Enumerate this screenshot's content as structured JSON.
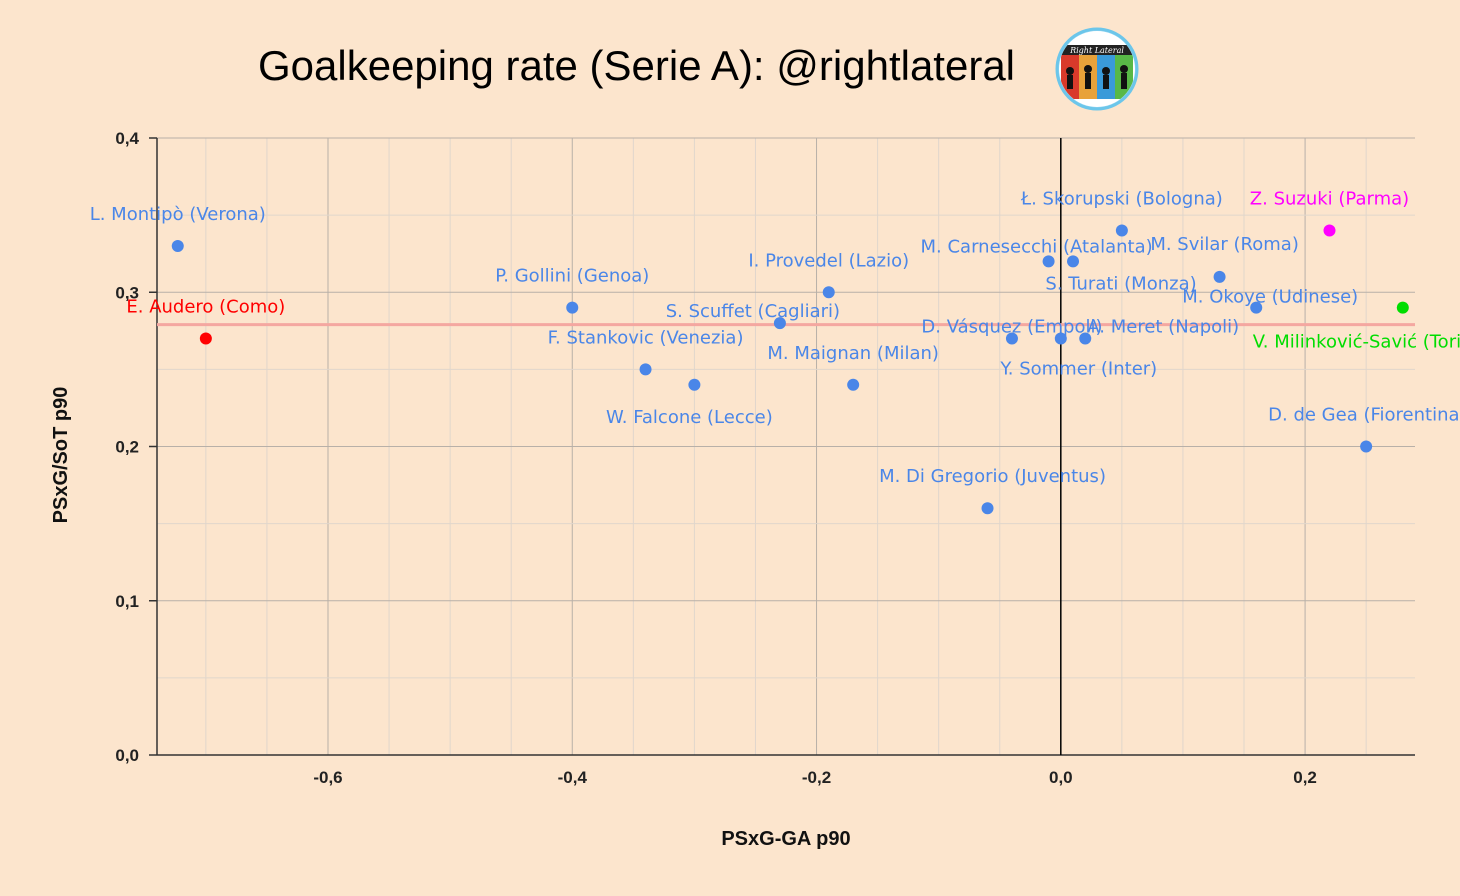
{
  "title": "Goalkeeping rate (Serie A): @rightlateral",
  "logo_text": "Right Lateral",
  "colors": {
    "background": "#fce5cd",
    "point": "#4a86e8",
    "highlight_bad": "#ff0000",
    "highlight_top": "#ff00ff",
    "highlight_right": "#00dd00",
    "trendline": "#f4a7a0",
    "zero_line": "#000000"
  },
  "chart_data": {
    "type": "scatter",
    "xlabel": "PSxG-GA p90",
    "ylabel": "PSxG/SoT p90",
    "xlim": [
      -0.74,
      0.29
    ],
    "ylim": [
      0,
      0.4
    ],
    "x_ticks": [
      "-0,6",
      "-0,4",
      "-0,2",
      "0,0",
      "0,2"
    ],
    "y_ticks": [
      "0,0",
      "0,1",
      "0,2",
      "0,3",
      "0,4"
    ],
    "trendline_y": 0.279,
    "grid": true,
    "points": [
      {
        "label": "L. Montipò (Verona)",
        "x": -0.723,
        "y": 0.33,
        "color": "#4a86e8"
      },
      {
        "label": "E. Audero (Como)",
        "x": -0.7,
        "y": 0.27,
        "color": "#ff0000"
      },
      {
        "label": "P. Gollini (Genoa)",
        "x": -0.4,
        "y": 0.29,
        "color": "#4a86e8"
      },
      {
        "label": "F. Stankovic (Venezia)",
        "x": -0.34,
        "y": 0.25,
        "color": "#4a86e8"
      },
      {
        "label": "W. Falcone (Lecce)",
        "x": -0.3,
        "y": 0.24,
        "color": "#4a86e8"
      },
      {
        "label": "S. Scuffet (Cagliari)",
        "x": -0.23,
        "y": 0.28,
        "color": "#4a86e8"
      },
      {
        "label": "I. Provedel (Lazio)",
        "x": -0.19,
        "y": 0.3,
        "color": "#4a86e8"
      },
      {
        "label": "M. Maignan (Milan)",
        "x": -0.17,
        "y": 0.24,
        "color": "#4a86e8"
      },
      {
        "label": "M. Di Gregorio (Juventus)",
        "x": -0.06,
        "y": 0.16,
        "color": "#4a86e8"
      },
      {
        "label": "D. Vásquez (Empoli)",
        "x": -0.04,
        "y": 0.27,
        "color": "#4a86e8"
      },
      {
        "label": "M. Carnesecchi (Atalanta)",
        "x": -0.01,
        "y": 0.32,
        "color": "#4a86e8"
      },
      {
        "label": "Y. Sommer (Inter)",
        "x": 0.0,
        "y": 0.27,
        "color": "#4a86e8"
      },
      {
        "label": "S. Turati (Monza)",
        "x": 0.01,
        "y": 0.32,
        "color": "#4a86e8"
      },
      {
        "label": "A. Meret (Napoli)",
        "x": 0.02,
        "y": 0.27,
        "color": "#4a86e8"
      },
      {
        "label": "Ł. Skorupski (Bologna)",
        "x": 0.05,
        "y": 0.34,
        "color": "#4a86e8"
      },
      {
        "label": "M. Svilar (Roma)",
        "x": 0.13,
        "y": 0.31,
        "color": "#4a86e8"
      },
      {
        "label": "M. Okoye (Udinese)",
        "x": 0.16,
        "y": 0.29,
        "color": "#4a86e8"
      },
      {
        "label": "Z. Suzuki (Parma)",
        "x": 0.22,
        "y": 0.34,
        "color": "#ff00ff"
      },
      {
        "label": "D. de Gea (Fiorentina)",
        "x": 0.25,
        "y": 0.2,
        "color": "#4a86e8"
      },
      {
        "label": "V. Milinković-Savić (Torino)",
        "x": 0.28,
        "y": 0.29,
        "color": "#00dd00"
      }
    ]
  }
}
